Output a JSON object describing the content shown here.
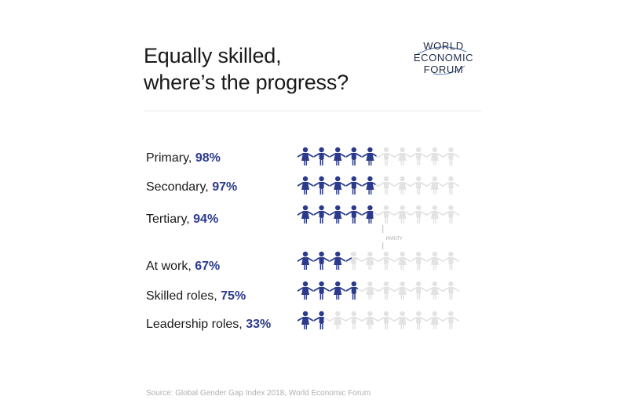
{
  "header": {
    "title_line1": "Equally skilled,",
    "title_line2": "where’s the progress?"
  },
  "logo": {
    "line1": "WORLD",
    "line2": "ECONOMIC",
    "line3": "FORUM"
  },
  "chart_data": {
    "type": "pictogram",
    "total_icons": 10,
    "parity_label": "PARITY",
    "unit": "%",
    "colors": {
      "filled": "#2b3a8c",
      "empty": "#e3e3e3"
    },
    "rows": [
      {
        "label": "Primary,",
        "value": 98,
        "value_text": "98%"
      },
      {
        "label": "Secondary,",
        "value": 97,
        "value_text": "97%"
      },
      {
        "label": "Tertiary,",
        "value": 94,
        "value_text": "94%"
      },
      {
        "label": "At work,",
        "value": 67,
        "value_text": "67%"
      },
      {
        "label": "Skilled roles,",
        "value": 75,
        "value_text": "75%"
      },
      {
        "label": "Leadership roles,",
        "value": 33,
        "value_text": "33%"
      }
    ]
  },
  "footer": {
    "source": "Source:  Global Gender Gap Index 2018, World Economic Forum"
  }
}
